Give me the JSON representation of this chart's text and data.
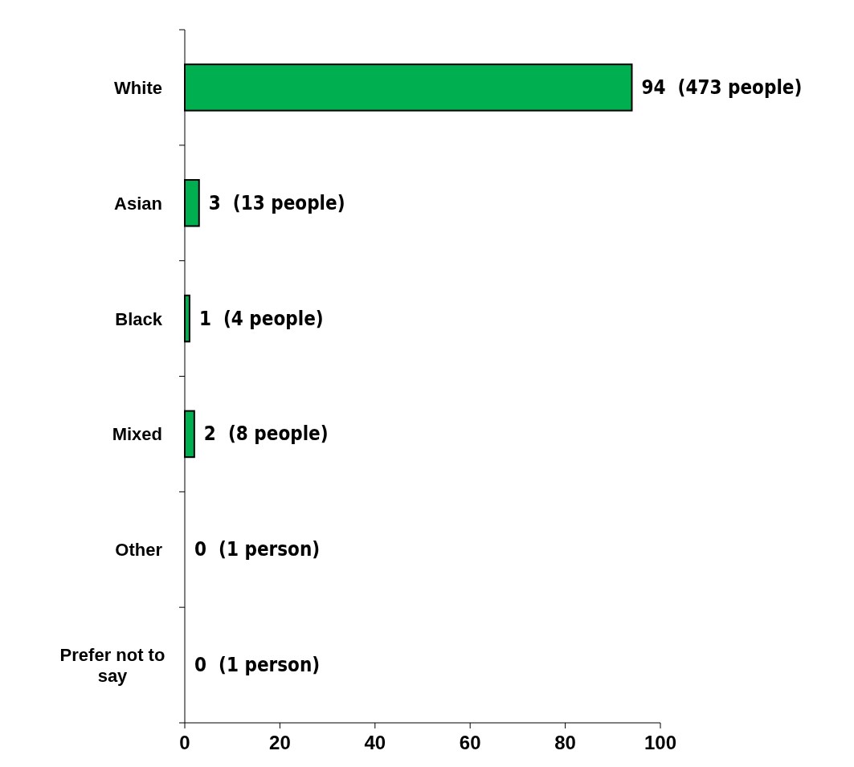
{
  "chart_data": {
    "type": "bar",
    "orientation": "horizontal",
    "categories": [
      "White",
      "Asian",
      "Black",
      "Mixed",
      "Other",
      "Prefer not to say"
    ],
    "values": [
      94,
      3,
      1,
      2,
      0,
      0
    ],
    "color": "#00b050",
    "value_labels": [
      "94  (473 people)",
      "3  (13 people)",
      "1  (4 people)",
      "2  (8 people)",
      "0  (1 person)",
      "0  (1 person)"
    ],
    "xlim": [
      0,
      100
    ],
    "xticks": [
      0,
      20,
      40,
      60,
      80,
      100
    ]
  }
}
